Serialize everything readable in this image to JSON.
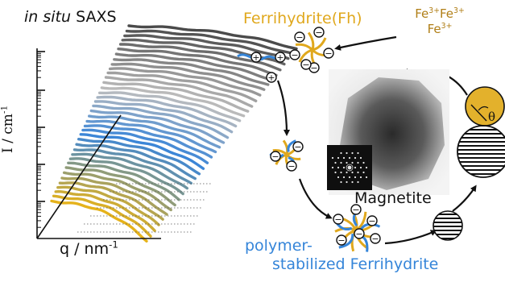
{
  "saxs": {
    "title_italic": "in situ",
    "title_rest": "SAXS",
    "ylabel_main": "I / cm",
    "ylabel_exp": "-1",
    "xlabel_main": "q / nm",
    "xlabel_exp": "-1"
  },
  "cycle": {
    "ferrihydrite": "Ferrihydrite(Fh)",
    "fe_ion_base": "Fe",
    "fe_ion_charge": "3+",
    "magnetite": "Magnetite",
    "polymer_line1": "polymer-",
    "polymer_line2": "stabilized Ferrihydrite",
    "angle_symbol": "θ",
    "charge_plus": "+",
    "charge_minus": "−"
  },
  "colors": {
    "ferrihydrite": "#e0a81d",
    "polymer": "#3585d9",
    "fe_ion": "#b07e16",
    "curve_dark": "#4a4a4a",
    "curve_gray": "#bdbdbd",
    "curve_blue": "#3b86d8",
    "curve_yellow": "#e5b21b"
  }
}
